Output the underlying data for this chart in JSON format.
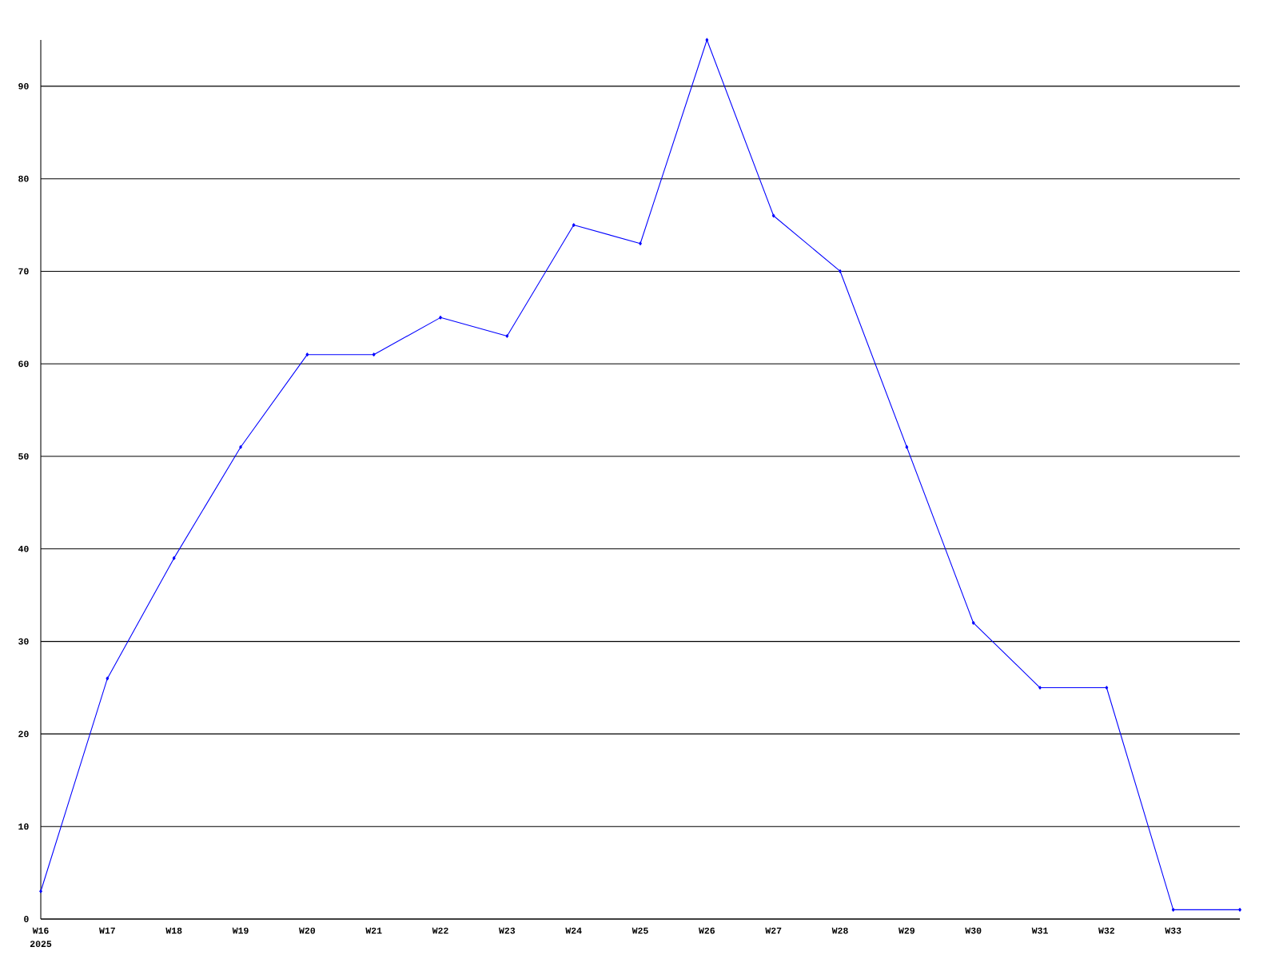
{
  "chart_data": {
    "type": "line",
    "categories": [
      "W16",
      "W17",
      "W18",
      "W19",
      "W20",
      "W21",
      "W22",
      "W23",
      "W24",
      "W25",
      "W26",
      "W27",
      "W28",
      "W29",
      "W30",
      "W31",
      "W32",
      "W33",
      null
    ],
    "series": [
      {
        "color": "#0000ff",
        "values": [
          3,
          26,
          39,
          51,
          61,
          61,
          65,
          63,
          75,
          73,
          95,
          76,
          70,
          51,
          32,
          25,
          25,
          1,
          1
        ]
      }
    ],
    "ylim": [
      0,
      95
    ],
    "yticks": [
      0,
      10,
      20,
      30,
      40,
      50,
      60,
      70,
      80,
      90
    ],
    "grid": "y",
    "marker": "diamond",
    "line_style": "solid",
    "annotations": [
      "2025"
    ]
  }
}
